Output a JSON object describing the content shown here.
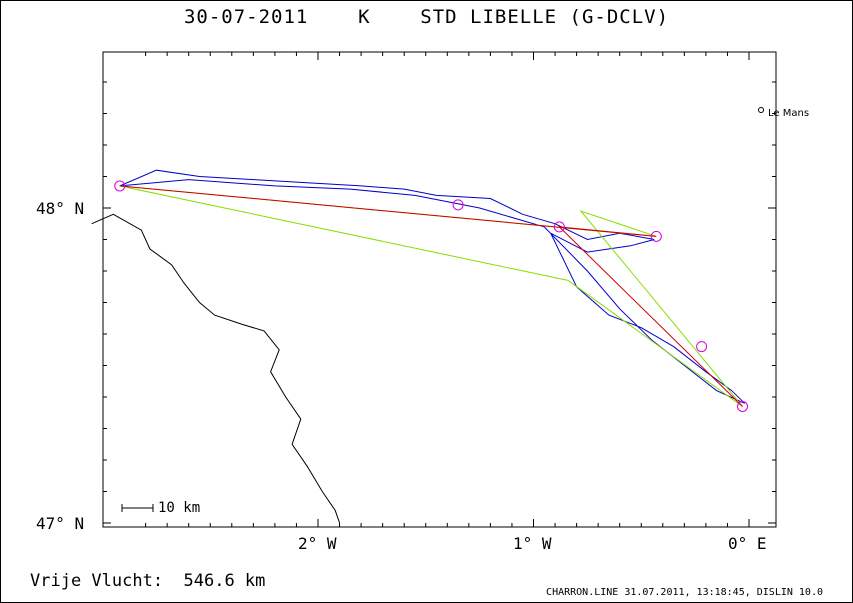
{
  "title": "30-07-2011    K    STD LIBELLE (G-DCLV)",
  "axes": {
    "lat_labels": [
      "48° N",
      "47° N"
    ],
    "lon_labels": [
      "2° W",
      "1° W",
      "0° E"
    ]
  },
  "scale_bar_label": "10 km",
  "place": {
    "name": "Le Mans"
  },
  "distance_text": "Vrije Vlucht:  546.6 km",
  "footer": "CHARRON.LINE 31.07.2011, 13:18:45, DISLIN 10.0",
  "colors": {
    "track": "#0000cc",
    "task_line": "#cc0000",
    "optimized_line": "#88dd00",
    "turnpoint": "#dd00dd",
    "coast": "#000000"
  },
  "turnpoints": [
    {
      "name": "tp1",
      "lon": -2.92,
      "lat": 48.07
    },
    {
      "name": "tp2",
      "lon": -1.35,
      "lat": 48.01
    },
    {
      "name": "tp3",
      "lon": -0.88,
      "lat": 47.94
    },
    {
      "name": "tp4",
      "lon": -0.43,
      "lat": 47.91
    },
    {
      "name": "tp5",
      "lon": -0.22,
      "lat": 47.56
    },
    {
      "name": "tp6",
      "lon": -0.03,
      "lat": 47.37
    }
  ],
  "task_route": [
    {
      "lon": -2.92,
      "lat": 48.07
    },
    {
      "lon": -0.43,
      "lat": 47.91
    },
    {
      "lon": -0.88,
      "lat": 47.94
    },
    {
      "lon": -0.03,
      "lat": 47.37
    }
  ],
  "optimized_route": [
    {
      "lon": -2.92,
      "lat": 48.07
    },
    {
      "lon": -0.84,
      "lat": 47.77
    },
    {
      "lon": -0.03,
      "lat": 47.37
    },
    {
      "lon": -0.78,
      "lat": 47.99
    },
    {
      "lon": -0.43,
      "lat": 47.91
    },
    {
      "lon": -2.92,
      "lat": 48.07
    }
  ],
  "flight_track": [
    {
      "lon": -2.92,
      "lat": 48.07
    },
    {
      "lon": -2.75,
      "lat": 48.12
    },
    {
      "lon": -2.55,
      "lat": 48.1
    },
    {
      "lon": -2.3,
      "lat": 48.09
    },
    {
      "lon": -2.05,
      "lat": 48.08
    },
    {
      "lon": -1.8,
      "lat": 48.07
    },
    {
      "lon": -1.6,
      "lat": 48.06
    },
    {
      "lon": -1.45,
      "lat": 48.04
    },
    {
      "lon": -1.2,
      "lat": 48.03
    },
    {
      "lon": -1.05,
      "lat": 47.98
    },
    {
      "lon": -0.9,
      "lat": 47.95
    },
    {
      "lon": -0.75,
      "lat": 47.9
    },
    {
      "lon": -0.6,
      "lat": 47.92
    },
    {
      "lon": -0.44,
      "lat": 47.9
    },
    {
      "lon": -0.55,
      "lat": 47.88
    },
    {
      "lon": -0.75,
      "lat": 47.86
    },
    {
      "lon": -0.92,
      "lat": 47.92
    },
    {
      "lon": -0.8,
      "lat": 47.75
    },
    {
      "lon": -0.65,
      "lat": 47.66
    },
    {
      "lon": -0.5,
      "lat": 47.62
    },
    {
      "lon": -0.35,
      "lat": 47.56
    },
    {
      "lon": -0.2,
      "lat": 47.48
    },
    {
      "lon": -0.08,
      "lat": 47.42
    },
    {
      "lon": -0.02,
      "lat": 47.38
    },
    {
      "lon": -0.15,
      "lat": 47.42
    },
    {
      "lon": -0.3,
      "lat": 47.5
    },
    {
      "lon": -0.45,
      "lat": 47.58
    },
    {
      "lon": -0.6,
      "lat": 47.68
    },
    {
      "lon": -0.75,
      "lat": 47.8
    },
    {
      "lon": -0.95,
      "lat": 47.94
    },
    {
      "lon": -1.25,
      "lat": 48.0
    },
    {
      "lon": -1.55,
      "lat": 48.04
    },
    {
      "lon": -1.85,
      "lat": 48.06
    },
    {
      "lon": -2.2,
      "lat": 48.07
    },
    {
      "lon": -2.6,
      "lat": 48.09
    },
    {
      "lon": -2.92,
      "lat": 48.07
    }
  ],
  "coastline": [
    {
      "lon": -3.05,
      "lat": 47.95
    },
    {
      "lon": -2.95,
      "lat": 47.98
    },
    {
      "lon": -2.82,
      "lat": 47.93
    },
    {
      "lon": -2.78,
      "lat": 47.87
    },
    {
      "lon": -2.68,
      "lat": 47.82
    },
    {
      "lon": -2.62,
      "lat": 47.76
    },
    {
      "lon": -2.55,
      "lat": 47.7
    },
    {
      "lon": -2.48,
      "lat": 47.66
    },
    {
      "lon": -2.35,
      "lat": 47.63
    },
    {
      "lon": -2.25,
      "lat": 47.61
    },
    {
      "lon": -2.18,
      "lat": 47.55
    },
    {
      "lon": -2.22,
      "lat": 47.48
    },
    {
      "lon": -2.15,
      "lat": 47.4
    },
    {
      "lon": -2.08,
      "lat": 47.33
    },
    {
      "lon": -2.12,
      "lat": 47.25
    },
    {
      "lon": -2.05,
      "lat": 47.18
    },
    {
      "lon": -1.98,
      "lat": 47.1
    },
    {
      "lon": -1.92,
      "lat": 47.04
    },
    {
      "lon": -1.9,
      "lat": 47.0
    }
  ]
}
